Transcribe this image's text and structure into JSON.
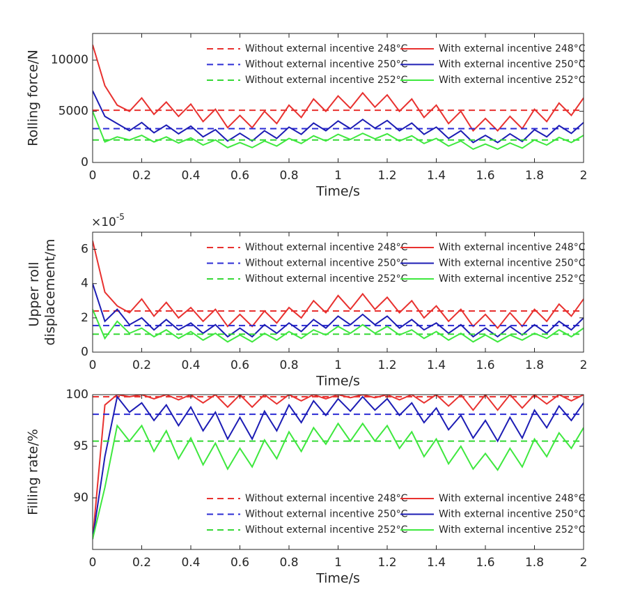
{
  "chart_data": [
    {
      "type": "line",
      "ylabel": "Rolling force/N",
      "xlabel": "Time/s",
      "xlim": [
        0,
        2
      ],
      "xticks": [
        0,
        0.2,
        0.4,
        0.6,
        0.8,
        1,
        1.2,
        1.4,
        1.6,
        1.8,
        2
      ],
      "ylim": [
        0,
        12600
      ],
      "yticks": [
        0,
        5000,
        10000
      ],
      "legend": "upper right",
      "x": [
        0,
        0.05,
        0.1,
        0.15,
        0.2,
        0.25,
        0.3,
        0.35,
        0.4,
        0.45,
        0.5,
        0.55,
        0.6,
        0.65,
        0.7,
        0.75,
        0.8,
        0.85,
        0.9,
        0.95,
        1,
        1.05,
        1.1,
        1.15,
        1.2,
        1.25,
        1.3,
        1.35,
        1.4,
        1.45,
        1.5,
        1.55,
        1.6,
        1.65,
        1.7,
        1.75,
        1.8,
        1.85,
        1.9,
        1.95,
        2
      ],
      "series": [
        {
          "name": "Without external incentive 248°C",
          "color": "#e8312f",
          "dashed": true,
          "x": [
            0,
            2
          ],
          "values": [
            5100,
            5100
          ]
        },
        {
          "name": "With external incentive 248°C",
          "color": "#e8312f",
          "dashed": false,
          "values": [
            11500,
            7500,
            5600,
            5000,
            6300,
            4700,
            5900,
            4500,
            5700,
            4000,
            5200,
            3400,
            4600,
            3400,
            5000,
            3800,
            5600,
            4400,
            6200,
            5000,
            6500,
            5300,
            6800,
            5400,
            6600,
            5000,
            6200,
            4400,
            5600,
            3800,
            5000,
            3100,
            4300,
            3100,
            4500,
            3300,
            5200,
            4000,
            5800,
            4600,
            6300
          ]
        },
        {
          "name": "Without external incentive 250°C",
          "color": "#2b2bd4",
          "dashed": true,
          "x": [
            0,
            2
          ],
          "values": [
            3300,
            3300
          ]
        },
        {
          "name": "With external incentive 250°C",
          "color": "#1c1cb4",
          "dashed": false,
          "values": [
            7000,
            4500,
            3800,
            3100,
            3900,
            2900,
            3650,
            2800,
            3550,
            2500,
            3200,
            2100,
            2850,
            2100,
            3100,
            2350,
            3450,
            2750,
            3850,
            3100,
            4050,
            3300,
            4200,
            3350,
            4100,
            3100,
            3850,
            2750,
            3450,
            2350,
            3100,
            1950,
            2650,
            1950,
            2800,
            2050,
            3200,
            2500,
            3600,
            2850,
            3900
          ]
        },
        {
          "name": "Without external incentive 252°C",
          "color": "#35d835",
          "dashed": true,
          "x": [
            0,
            2
          ],
          "values": [
            2200,
            2200
          ]
        },
        {
          "name": "With external incentive 252°C",
          "color": "#3ee83e",
          "dashed": false,
          "values": [
            5000,
            2000,
            2500,
            2200,
            2650,
            2000,
            2500,
            1900,
            2400,
            1700,
            2200,
            1450,
            1950,
            1450,
            2100,
            1600,
            2350,
            1850,
            2600,
            2100,
            2750,
            2250,
            2850,
            2300,
            2800,
            2100,
            2600,
            1850,
            2350,
            1600,
            2100,
            1300,
            1800,
            1300,
            1900,
            1400,
            2200,
            1700,
            2450,
            1950,
            2650
          ]
        }
      ]
    },
    {
      "type": "line",
      "ylabel": "Upper roll displacement/m",
      "xlabel": "Time/s",
      "y_multiplier": "×10",
      "y_multiplier_exp": "-5",
      "xlim": [
        0,
        2
      ],
      "xticks": [
        0,
        0.2,
        0.4,
        0.6,
        0.8,
        1,
        1.2,
        1.4,
        1.6,
        1.8,
        2
      ],
      "ylim": [
        0,
        7
      ],
      "yticks": [
        0,
        2,
        4,
        6
      ],
      "legend": "upper right",
      "x": [
        0,
        0.05,
        0.1,
        0.15,
        0.2,
        0.25,
        0.3,
        0.35,
        0.4,
        0.45,
        0.5,
        0.55,
        0.6,
        0.65,
        0.7,
        0.75,
        0.8,
        0.85,
        0.9,
        0.95,
        1,
        1.05,
        1.1,
        1.15,
        1.2,
        1.25,
        1.3,
        1.35,
        1.4,
        1.45,
        1.5,
        1.55,
        1.6,
        1.65,
        1.7,
        1.75,
        1.8,
        1.85,
        1.9,
        1.95,
        2
      ],
      "series": [
        {
          "name": "Without external incentive 248°C",
          "color": "#e8312f",
          "dashed": true,
          "x": [
            0,
            2
          ],
          "values": [
            2.4,
            2.4
          ]
        },
        {
          "name": "With external incentive 248°C",
          "color": "#e8312f",
          "dashed": false,
          "values": [
            6.5,
            3.5,
            2.7,
            2.3,
            3.1,
            2.1,
            2.9,
            2.0,
            2.6,
            1.8,
            2.5,
            1.5,
            2.2,
            1.5,
            2.4,
            1.7,
            2.6,
            2.0,
            3.0,
            2.3,
            3.3,
            2.5,
            3.4,
            2.5,
            3.2,
            2.3,
            3.0,
            2.0,
            2.7,
            1.8,
            2.5,
            1.5,
            2.2,
            1.4,
            2.3,
            1.5,
            2.5,
            1.8,
            2.8,
            2.1,
            3.1
          ]
        },
        {
          "name": "Without external incentive 250°C",
          "color": "#2b2bd4",
          "dashed": true,
          "x": [
            0,
            2
          ],
          "values": [
            1.55,
            1.55
          ]
        },
        {
          "name": "With external incentive 250°C",
          "color": "#1c1cb4",
          "dashed": false,
          "values": [
            4.0,
            1.8,
            2.5,
            1.6,
            2.0,
            1.3,
            1.9,
            1.3,
            1.7,
            1.1,
            1.6,
            0.9,
            1.4,
            0.9,
            1.6,
            1.1,
            1.7,
            1.2,
            1.9,
            1.4,
            2.1,
            1.6,
            2.2,
            1.6,
            2.1,
            1.4,
            1.9,
            1.3,
            1.7,
            1.1,
            1.6,
            0.9,
            1.4,
            0.9,
            1.5,
            1.0,
            1.6,
            1.1,
            1.8,
            1.3,
            2.0
          ]
        },
        {
          "name": "Without external incentive 252°C",
          "color": "#35d835",
          "dashed": true,
          "x": [
            0,
            2
          ],
          "values": [
            1.05,
            1.05
          ]
        },
        {
          "name": "With external incentive 252°C",
          "color": "#3ee83e",
          "dashed": false,
          "values": [
            2.5,
            0.8,
            1.8,
            1.1,
            1.4,
            0.9,
            1.3,
            0.8,
            1.2,
            0.7,
            1.1,
            0.6,
            1.0,
            0.6,
            1.1,
            0.7,
            1.2,
            0.8,
            1.3,
            1.0,
            1.5,
            1.1,
            1.6,
            1.1,
            1.5,
            1.0,
            1.3,
            0.8,
            1.2,
            0.7,
            1.1,
            0.6,
            1.0,
            0.6,
            1.0,
            0.7,
            1.1,
            0.8,
            1.3,
            0.9,
            1.4
          ]
        }
      ]
    },
    {
      "type": "line",
      "ylabel": "Filling rate/%",
      "xlabel": "Time/s",
      "xlim": [
        0,
        2
      ],
      "xticks": [
        0,
        0.2,
        0.4,
        0.6,
        0.8,
        1,
        1.2,
        1.4,
        1.6,
        1.8,
        2
      ],
      "ylim": [
        85,
        100
      ],
      "yticks": [
        90,
        95,
        100
      ],
      "legend": "lower right",
      "x": [
        0,
        0.05,
        0.1,
        0.15,
        0.2,
        0.25,
        0.3,
        0.35,
        0.4,
        0.45,
        0.5,
        0.55,
        0.6,
        0.65,
        0.7,
        0.75,
        0.8,
        0.85,
        0.9,
        0.95,
        1,
        1.05,
        1.1,
        1.15,
        1.2,
        1.25,
        1.3,
        1.35,
        1.4,
        1.45,
        1.5,
        1.55,
        1.6,
        1.65,
        1.7,
        1.75,
        1.8,
        1.85,
        1.9,
        1.95,
        2
      ],
      "series": [
        {
          "name": "Without external incentive 248°C",
          "color": "#e8312f",
          "dashed": true,
          "x": [
            0,
            2
          ],
          "values": [
            99.8,
            99.8
          ]
        },
        {
          "name": "With external incentive 248°C",
          "color": "#e8312f",
          "dashed": false,
          "values": [
            86,
            99,
            100,
            99.8,
            100,
            99.6,
            100,
            99.5,
            100,
            99.2,
            100,
            98.8,
            100,
            98.8,
            100,
            99.1,
            100,
            99.4,
            100,
            99.6,
            100,
            99.7,
            100,
            99.7,
            100,
            99.5,
            100,
            99.2,
            100,
            98.9,
            100,
            98.5,
            100,
            98.5,
            100,
            98.7,
            100,
            99.1,
            100,
            99.4,
            100
          ]
        },
        {
          "name": "Without external incentive 250°C",
          "color": "#2b2bd4",
          "dashed": true,
          "x": [
            0,
            2
          ],
          "values": [
            98.1,
            98.1
          ]
        },
        {
          "name": "With external incentive 250°C",
          "color": "#1c1cb4",
          "dashed": false,
          "values": [
            86,
            94,
            99.8,
            98.3,
            99.2,
            97.5,
            99.0,
            97.0,
            98.8,
            96.5,
            98.3,
            95.7,
            97.8,
            95.7,
            98.4,
            96.5,
            99.0,
            97.3,
            99.4,
            98.0,
            99.6,
            98.4,
            99.8,
            98.5,
            99.6,
            98.0,
            99.2,
            97.3,
            98.7,
            96.6,
            98.0,
            95.8,
            97.5,
            95.5,
            97.8,
            95.8,
            98.5,
            96.8,
            98.9,
            97.5,
            99.2
          ]
        },
        {
          "name": "Without external incentive 252°C",
          "color": "#35d835",
          "dashed": true,
          "x": [
            0,
            2
          ],
          "values": [
            95.5,
            95.5
          ]
        },
        {
          "name": "With external incentive 252°C",
          "color": "#3ee83e",
          "dashed": false,
          "values": [
            86,
            91,
            97,
            95.5,
            97.0,
            94.5,
            96.5,
            93.8,
            95.8,
            93.2,
            95.3,
            92.8,
            94.8,
            93.0,
            95.6,
            93.8,
            96.4,
            94.5,
            96.8,
            95.2,
            97.2,
            95.5,
            97.2,
            95.5,
            97.0,
            94.8,
            96.4,
            94.0,
            95.7,
            93.3,
            95.0,
            92.8,
            94.3,
            92.7,
            94.8,
            93.0,
            95.7,
            94.0,
            96.3,
            94.8,
            96.8
          ]
        }
      ]
    }
  ]
}
